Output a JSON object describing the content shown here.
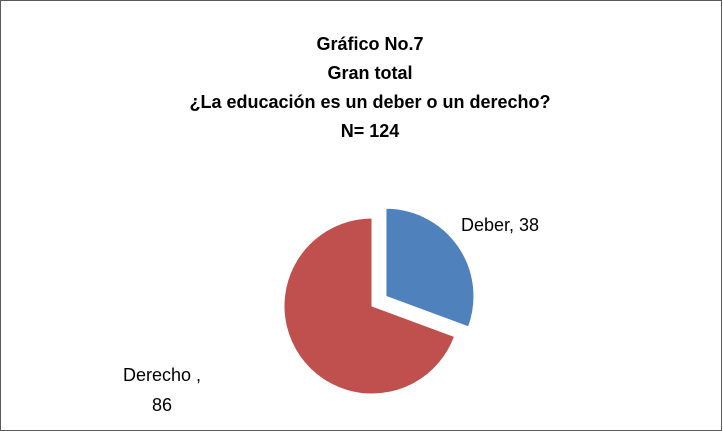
{
  "chart_data": {
    "type": "pie",
    "title": [
      "Gráfico No.7",
      "Gran total",
      "¿La educación es un deber o un derecho?",
      "N= 124"
    ],
    "categories": [
      "Deber",
      "Derecho"
    ],
    "values": [
      38,
      86
    ],
    "value_labels": [
      "Deber, 38",
      "Derecho , 86"
    ],
    "colors": [
      "#4f81bd",
      "#c0504d"
    ]
  }
}
